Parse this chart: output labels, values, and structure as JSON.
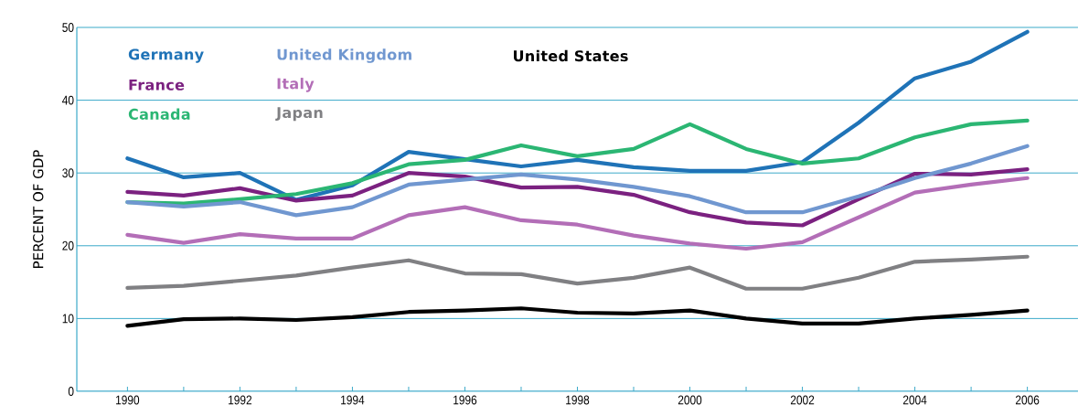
{
  "chart_data": {
    "type": "line",
    "ylabel": "PERCENT OF GDP",
    "x": [
      1990,
      1991,
      1992,
      1993,
      1994,
      1995,
      1996,
      1997,
      1998,
      1999,
      2000,
      2001,
      2002,
      2003,
      2004,
      2005,
      2006
    ],
    "series": [
      {
        "name": "Germany",
        "color": "#1f73b7",
        "values": [
          32.0,
          29.4,
          30.0,
          26.3,
          28.3,
          32.9,
          31.9,
          30.9,
          31.8,
          30.8,
          30.3,
          30.3,
          31.5,
          36.9,
          43.0,
          45.3,
          49.4
        ]
      },
      {
        "name": "France",
        "color": "#7b2180",
        "values": [
          27.4,
          26.9,
          27.9,
          26.2,
          26.9,
          30.0,
          29.5,
          28.0,
          28.1,
          27.0,
          24.6,
          23.2,
          22.8,
          26.4,
          29.9,
          29.8,
          30.5
        ]
      },
      {
        "name": "Canada",
        "color": "#2bb673",
        "values": [
          26.0,
          25.8,
          26.4,
          27.1,
          28.6,
          31.2,
          31.8,
          33.8,
          32.3,
          33.3,
          36.7,
          33.3,
          31.3,
          32.0,
          34.9,
          36.7,
          37.2
        ]
      },
      {
        "name": "United Kingdom",
        "color": "#7097d0",
        "values": [
          26.0,
          25.4,
          26.0,
          24.2,
          25.3,
          28.4,
          29.1,
          29.8,
          29.1,
          28.1,
          26.8,
          24.6,
          24.6,
          26.8,
          29.3,
          31.3,
          33.7
        ]
      },
      {
        "name": "Italy",
        "color": "#b36eb7",
        "values": [
          21.5,
          20.4,
          21.6,
          21.0,
          21.0,
          24.2,
          25.3,
          23.5,
          22.9,
          21.4,
          20.3,
          19.6,
          20.5,
          23.9,
          27.3,
          28.4,
          29.3
        ]
      },
      {
        "name": "Japan",
        "color": "#808083",
        "values": [
          14.2,
          14.5,
          15.2,
          15.9,
          17.0,
          18.0,
          16.2,
          16.1,
          14.8,
          15.6,
          17.0,
          14.1,
          14.1,
          15.6,
          17.8,
          18.1,
          18.5
        ]
      },
      {
        "name": "United States",
        "color": "#000000",
        "values": [
          9.0,
          9.9,
          10.0,
          9.8,
          10.2,
          10.9,
          11.1,
          11.4,
          10.8,
          10.7,
          11.1,
          10.0,
          9.3,
          9.3,
          10.0,
          10.5,
          11.1
        ]
      }
    ],
    "xlim": [
      1989.1,
      2006.9
    ],
    "xticks": [
      1990,
      {
        "value": 1991,
        "label": null
      },
      1992,
      {
        "value": 1993,
        "label": null
      },
      1994,
      {
        "value": 1995,
        "label": null
      },
      1996,
      {
        "value": 1997,
        "label": null
      },
      1998,
      {
        "value": 1999,
        "label": null
      },
      2000,
      {
        "value": 2001,
        "label": null
      },
      2002,
      {
        "value": 2003,
        "label": null
      },
      2004,
      {
        "value": 2005,
        "label": null
      },
      2006
    ],
    "ylim": [
      0,
      50
    ],
    "yticks": [
      0,
      10,
      20,
      30,
      40,
      50
    ],
    "grid": "y",
    "legend": "top left",
    "marker": "none",
    "line_style": "solid"
  }
}
